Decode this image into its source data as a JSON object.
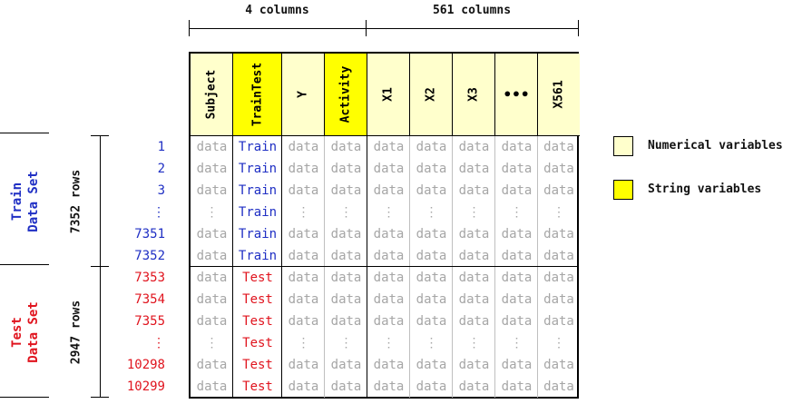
{
  "colors": {
    "numerical": "#ffffcc",
    "string": "#ffff00",
    "train_text": "#1f2fc4",
    "test_text": "#e0141e",
    "data_text": "#a6a6a6"
  },
  "top_braces": [
    {
      "label": "4 columns"
    },
    {
      "label": "561 columns"
    }
  ],
  "columns": [
    {
      "label": "Subject",
      "kind": "numerical"
    },
    {
      "label": "TrainTest",
      "kind": "string"
    },
    {
      "label": "Y",
      "kind": "numerical"
    },
    {
      "label": "Activity",
      "kind": "string"
    },
    {
      "label": "X1",
      "kind": "numerical"
    },
    {
      "label": "X2",
      "kind": "numerical"
    },
    {
      "label": "X3",
      "kind": "numerical"
    },
    {
      "label": "•••",
      "kind": "numerical"
    },
    {
      "label": "X561",
      "kind": "numerical"
    }
  ],
  "groups": [
    {
      "title_line1": "Train",
      "title_line2": "Data Set",
      "row_count": "7352 rows",
      "set": "train",
      "rows": [
        {
          "num": "1",
          "tt": "Train",
          "dots": false
        },
        {
          "num": "2",
          "tt": "Train",
          "dots": false
        },
        {
          "num": "3",
          "tt": "Train",
          "dots": false
        },
        {
          "num": "⋮",
          "tt": "Train",
          "dots": true
        },
        {
          "num": "7351",
          "tt": "Train",
          "dots": false
        },
        {
          "num": "7352",
          "tt": "Train",
          "dots": false
        }
      ]
    },
    {
      "title_line1": "Test",
      "title_line2": "Data Set",
      "row_count": "2947 rows",
      "set": "test",
      "rows": [
        {
          "num": "7353",
          "tt": "Test",
          "dots": false
        },
        {
          "num": "7354",
          "tt": "Test",
          "dots": false
        },
        {
          "num": "7355",
          "tt": "Test",
          "dots": false
        },
        {
          "num": "⋮",
          "tt": "Test",
          "dots": true
        },
        {
          "num": "10298",
          "tt": "Test",
          "dots": false
        },
        {
          "num": "10299",
          "tt": "Test",
          "dots": false
        }
      ]
    }
  ],
  "cell_text": "data",
  "dots_text": "⋮",
  "legend": [
    {
      "label": "Numerical variables",
      "kind": "numerical"
    },
    {
      "label": "String variables",
      "kind": "string"
    }
  ]
}
